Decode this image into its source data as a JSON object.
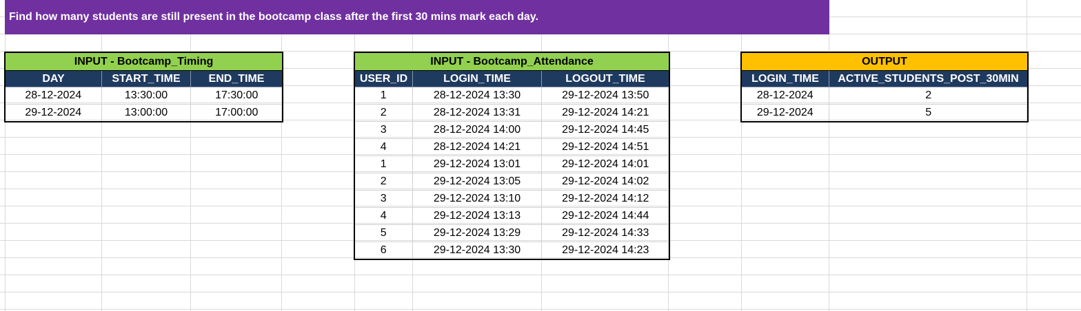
{
  "banner": {
    "text": "Find how many students are still present in the bootcamp class after the first 30 mins mark each day."
  },
  "timing": {
    "caption": "INPUT - Bootcamp_Timing",
    "headers": [
      "DAY",
      "START_TIME",
      "END_TIME"
    ],
    "rows": [
      [
        "28-12-2024",
        "13:30:00",
        "17:30:00"
      ],
      [
        "29-12-2024",
        "13:00:00",
        "17:00:00"
      ]
    ]
  },
  "attendance": {
    "caption": "INPUT - Bootcamp_Attendance",
    "headers": [
      "USER_ID",
      "LOGIN_TIME",
      "LOGOUT_TIME"
    ],
    "rows": [
      [
        "1",
        "28-12-2024 13:30",
        "29-12-2024 13:50"
      ],
      [
        "2",
        "28-12-2024 13:31",
        "29-12-2024 14:21"
      ],
      [
        "3",
        "28-12-2024 14:00",
        "29-12-2024 14:45"
      ],
      [
        "4",
        "28-12-2024 14:21",
        "29-12-2024 14:51"
      ],
      [
        "1",
        "29-12-2024 13:01",
        "29-12-2024 14:01"
      ],
      [
        "2",
        "29-12-2024 13:05",
        "29-12-2024 14:02"
      ],
      [
        "3",
        "29-12-2024 13:10",
        "29-12-2024 14:12"
      ],
      [
        "4",
        "29-12-2024 13:13",
        "29-12-2024 14:44"
      ],
      [
        "5",
        "29-12-2024 13:29",
        "29-12-2024 14:33"
      ],
      [
        "6",
        "29-12-2024 13:30",
        "29-12-2024 14:23"
      ]
    ]
  },
  "output": {
    "caption": "OUTPUT",
    "headers": [
      "LOGIN_TIME",
      "ACTIVE_STUDENTS_POST_30MIN"
    ],
    "rows": [
      [
        "28-12-2024",
        "2"
      ],
      [
        "29-12-2024",
        "5"
      ]
    ]
  },
  "colors": {
    "banner": "#7030a0",
    "caption_green": "#92d050",
    "caption_orange": "#ffc000",
    "header_navy": "#1f3a5f"
  }
}
